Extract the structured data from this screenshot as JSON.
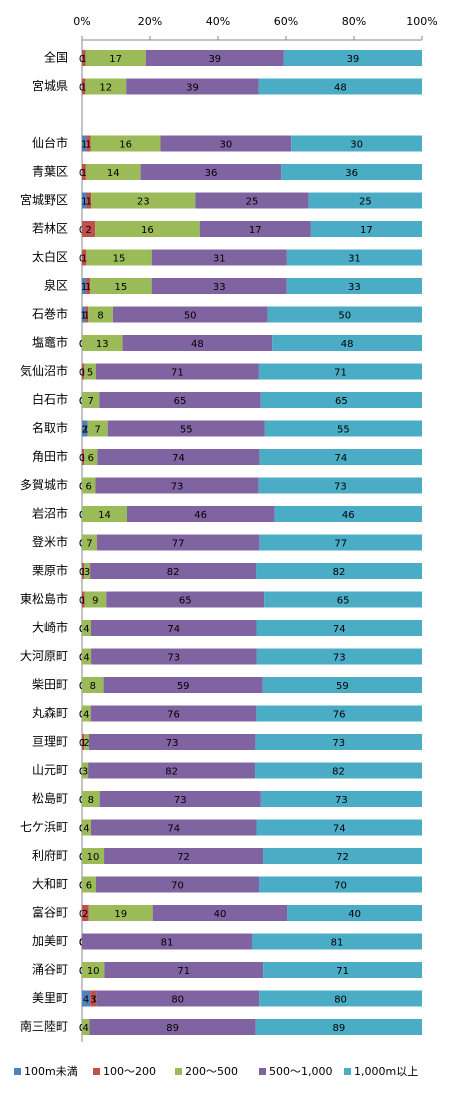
{
  "chart_data": {
    "type": "bar",
    "orientation": "horizontal",
    "stacked": "percent",
    "categories": [
      "全国",
      "宮城県",
      null,
      "仙台市",
      "青葉区",
      "宮城野区",
      "若林区",
      "太白区",
      "泉区",
      "石巻市",
      "塩竈市",
      "気仙沼市",
      "白石市",
      "名取市",
      "角田市",
      "多賀城市",
      "岩沼市",
      "登米市",
      "栗原市",
      "東松島市",
      "大崎市",
      "大河原町",
      "柴田町",
      "丸森町",
      "亘理町",
      "山元町",
      "松島町",
      "七ケ浜町",
      "利府町",
      "大和町",
      "富谷町",
      "加美町",
      "涌谷町",
      "美里町",
      "南三陸町"
    ],
    "series": [
      {
        "name": "100m未満",
        "color": "#4f81bd",
        "values": [
          0,
          0,
          null,
          1,
          0,
          1,
          0,
          0,
          1,
          1,
          0,
          0,
          0,
          2,
          0,
          0,
          0,
          0,
          0,
          0,
          0,
          0,
          0,
          0,
          0,
          0,
          0,
          0,
          0,
          0,
          0,
          0,
          0,
          4,
          0
        ]
      },
      {
        "name": "100～200",
        "color": "#c0504d",
        "values": [
          1,
          1,
          null,
          1,
          1,
          1,
          2,
          1,
          1,
          1,
          0,
          1,
          0,
          0,
          1,
          0,
          0,
          0,
          1,
          1,
          0,
          0,
          0,
          0,
          1,
          0,
          0,
          0,
          0,
          0,
          2,
          0,
          0,
          3,
          0
        ]
      },
      {
        "name": "200～500",
        "color": "#9bbb59",
        "values": [
          17,
          12,
          null,
          16,
          14,
          23,
          16,
          15,
          15,
          8,
          13,
          5,
          7,
          7,
          6,
          6,
          14,
          7,
          3,
          9,
          4,
          4,
          8,
          4,
          2,
          3,
          8,
          4,
          10,
          6,
          19,
          0,
          10,
          0,
          4
        ]
      },
      {
        "name": "500～1,000",
        "color": "#8064a2",
        "values": [
          39,
          39,
          null,
          30,
          36,
          25,
          17,
          31,
          33,
          50,
          48,
          71,
          65,
          55,
          74,
          73,
          46,
          77,
          82,
          65,
          74,
          73,
          59,
          76,
          73,
          82,
          73,
          74,
          72,
          70,
          40,
          81,
          71,
          80,
          89
        ]
      },
      {
        "name": "1,000m以上",
        "color": "#4bacc6",
        "values": [
          39,
          48,
          null,
          30,
          36,
          25,
          17,
          31,
          33,
          50,
          48,
          71,
          65,
          55,
          74,
          73,
          46,
          77,
          82,
          65,
          74,
          73,
          59,
          76,
          73,
          82,
          73,
          74,
          72,
          70,
          40,
          81,
          71,
          80,
          89
        ]
      }
    ],
    "xlim": [
      0,
      100
    ],
    "xticks": [
      {
        "value": 0,
        "label": "0%"
      },
      {
        "value": 20,
        "label": "20%"
      },
      {
        "value": 40,
        "label": "40%"
      },
      {
        "value": 60,
        "label": "60%"
      },
      {
        "value": 80,
        "label": "80%"
      },
      {
        "value": 100,
        "label": "100%"
      }
    ],
    "legend": "bottom"
  }
}
